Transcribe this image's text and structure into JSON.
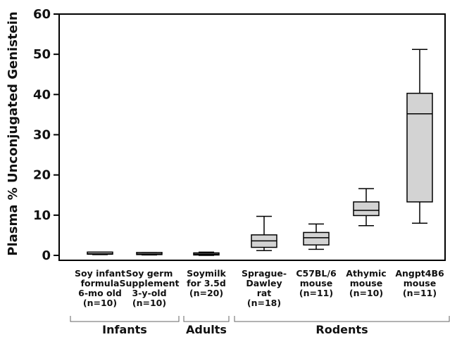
{
  "chart_data": {
    "type": "box",
    "ylabel": "Plasma % Unconjugated Genistein",
    "ylim": [
      0,
      60
    ],
    "yticks": [
      "0",
      "10",
      "20",
      "30",
      "40",
      "50",
      "60"
    ],
    "categories": [
      {
        "lines": [
          "Soy infant",
          "formula",
          "6-mo old",
          "(n=10)"
        ],
        "whisker_low": 0.2,
        "q1": 0.3,
        "median": 0.4,
        "q3": 0.5,
        "whisker_high": 0.6
      },
      {
        "lines": [
          "Soy germ",
          "Supplement",
          "3-y-old",
          "(n=10)"
        ],
        "whisker_low": 0.1,
        "q1": 0.2,
        "median": 0.35,
        "q3": 0.55,
        "whisker_high": 0.7
      },
      {
        "lines": [
          "Soymilk",
          "for 3.5d",
          "(n=20)"
        ],
        "whisker_low": 0.0,
        "q1": 0.1,
        "median": 0.3,
        "q3": 0.6,
        "whisker_high": 0.8
      },
      {
        "lines": [
          "Sprague-",
          "Dawley",
          "rat",
          "(n=18)"
        ],
        "whisker_low": 1.2,
        "q1": 2.0,
        "median": 3.6,
        "q3": 5.1,
        "whisker_high": 9.7
      },
      {
        "lines": [
          "C57BL/6",
          "mouse",
          "(n=11)"
        ],
        "whisker_low": 1.5,
        "q1": 2.6,
        "median": 4.4,
        "q3": 5.7,
        "whisker_high": 7.8
      },
      {
        "lines": [
          "Athymic",
          "mouse",
          "(n=10)"
        ],
        "whisker_low": 7.4,
        "q1": 9.9,
        "median": 11.2,
        "q3": 13.3,
        "whisker_high": 16.6
      },
      {
        "lines": [
          "Angpt4B6",
          "mouse",
          "(n=11)"
        ],
        "whisker_low": 8.0,
        "q1": 13.3,
        "median": 35.2,
        "q3": 40.3,
        "whisker_high": 51.2
      }
    ],
    "groups": [
      {
        "label": "Infants",
        "from": 0,
        "to": 1
      },
      {
        "label": "Adults",
        "from": 2,
        "to": 2
      },
      {
        "label": "Rodents",
        "from": 3,
        "to": 6
      }
    ],
    "box_fill": "#d3d3d3",
    "line_color": "#000000"
  }
}
